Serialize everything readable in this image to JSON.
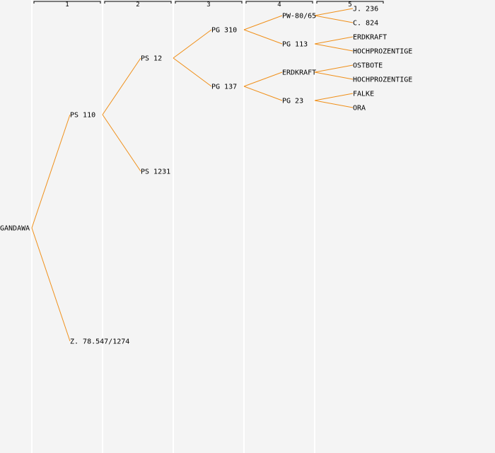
{
  "generation_labels": [
    "1",
    "2",
    "3",
    "4",
    "5"
  ],
  "colors": {
    "background": "#f4f4f4",
    "column_line": "#ffffff",
    "header_bracket": "#000000",
    "connector": "#f0901a",
    "text": "#000000"
  },
  "tree": {
    "label": "GANDAWA",
    "children": [
      {
        "label": "PS 110",
        "children": [
          {
            "label": "PS 12",
            "children": [
              {
                "label": "PG 310",
                "children": [
                  {
                    "label": "PW-80/65",
                    "children": [
                      {
                        "label": "J. 236"
                      },
                      {
                        "label": "C. 824"
                      }
                    ]
                  },
                  {
                    "label": "PG 113",
                    "children": [
                      {
                        "label": "ERDKRAFT"
                      },
                      {
                        "label": "HOCHPROZENTIGE"
                      }
                    ]
                  }
                ]
              },
              {
                "label": "PG 137",
                "children": [
                  {
                    "label": "ERDKRAFT",
                    "children": [
                      {
                        "label": "OSTBOTE"
                      },
                      {
                        "label": "HOCHPROZENTIGE"
                      }
                    ]
                  },
                  {
                    "label": "PG 23",
                    "children": [
                      {
                        "label": "FALKE"
                      },
                      {
                        "label": "ORA"
                      }
                    ]
                  }
                ]
              }
            ]
          },
          {
            "label": "PS 1231"
          }
        ]
      },
      {
        "label": "Z. 78.547/1274"
      }
    ]
  }
}
